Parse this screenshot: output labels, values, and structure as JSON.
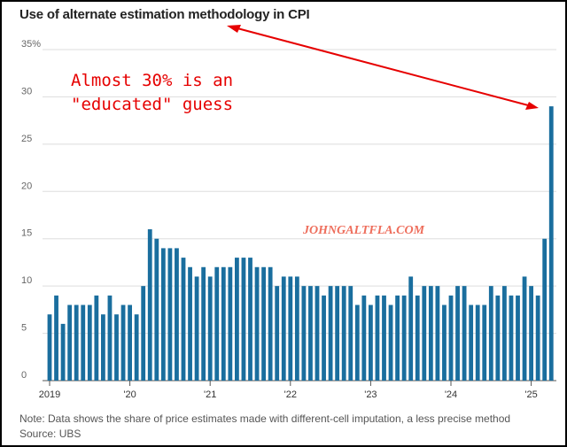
{
  "header": {
    "title": "Use of alternate estimation methodology in CPI"
  },
  "footer": {
    "note": "Note: Data shows the share of price estimates made with different-cell imputation, a less precise method",
    "source": "Source: UBS"
  },
  "annotation": {
    "line1": "Almost 30% is an",
    "line2": "\"educated\" guess"
  },
  "watermark": "JOHNGALTFLA.COM",
  "colors": {
    "bar": "#1a6e9e",
    "gridline": "#dddddd",
    "annotation": "#e60000",
    "watermark": "#ee6e5c"
  },
  "chart_data": {
    "type": "bar",
    "title": "Use of alternate estimation methodology in CPI",
    "xlabel": "",
    "ylabel": "",
    "ylim": [
      0,
      35
    ],
    "grid": true,
    "y_ticks": [
      "0",
      "5",
      "10",
      "15",
      "20",
      "25",
      "30",
      "35%"
    ],
    "x_tick_labels": [
      "2019",
      "'20",
      "'21",
      "'22",
      "'23",
      "'24",
      "'25"
    ],
    "x_start": "2019-01",
    "frequency": "monthly",
    "values": [
      7,
      9,
      6,
      8,
      8,
      8,
      8,
      9,
      7,
      9,
      7,
      8,
      8,
      7,
      10,
      16,
      15,
      14,
      14,
      14,
      13,
      12,
      11,
      12,
      11,
      12,
      12,
      12,
      13,
      13,
      13,
      12,
      12,
      12,
      10,
      11,
      11,
      11,
      10,
      10,
      10,
      9,
      10,
      10,
      10,
      10,
      8,
      9,
      8,
      9,
      9,
      8,
      9,
      9,
      11,
      9,
      10,
      10,
      10,
      8,
      9,
      10,
      10,
      8,
      8,
      8,
      10,
      9,
      10,
      9,
      9,
      11,
      10,
      9,
      15,
      29
    ]
  }
}
